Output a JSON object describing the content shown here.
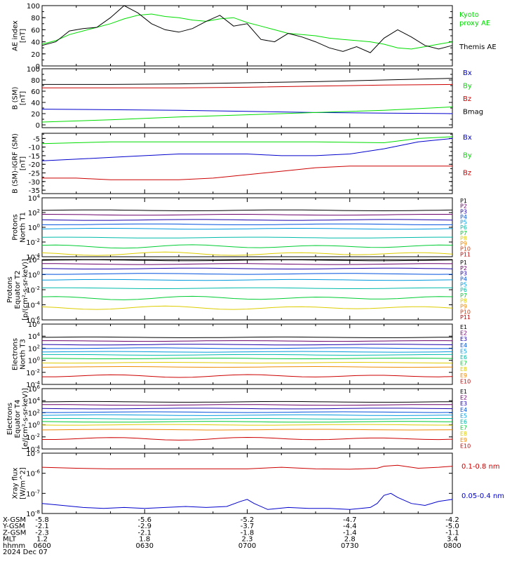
{
  "chart_data": {
    "type": "line",
    "x_time_labels": [
      "0600",
      "0630",
      "0700",
      "0730",
      "0800"
    ],
    "time_range_minutes": [
      0,
      120
    ],
    "footer": {
      "rows": [
        {
          "label": "X-GSM",
          "values": [
            "-5.8",
            "-5.6",
            "-5.2",
            "-4.7",
            "-4.2"
          ]
        },
        {
          "label": "Y-GSM",
          "values": [
            "-2.1",
            "-2.9",
            "-3.7",
            "-4.4",
            "-5.0"
          ]
        },
        {
          "label": "Z-GSM",
          "values": [
            "-2.3",
            "-2.1",
            "-1.8",
            "-1.4",
            "-1.1"
          ]
        },
        {
          "label": "MLT",
          "values": [
            "1.2",
            "1.8",
            "2.3",
            "2.8",
            "3.4"
          ]
        },
        {
          "label": "hhmm",
          "values": [
            "0600",
            "0630",
            "0700",
            "0730",
            "0800"
          ]
        }
      ],
      "date": "2024 Dec 07"
    },
    "panels": [
      {
        "id": "ae",
        "ylabel": [
          "AE index",
          "[nT]"
        ],
        "scale": "linear",
        "ylim": [
          0,
          100
        ],
        "ticks": [
          "0",
          "20",
          "40",
          "60",
          "80",
          "100"
        ],
        "series": [
          {
            "name": "Kyoto proxy AE",
            "color": "#00dd00",
            "t": [
              0,
              4,
              8,
              12,
              16,
              20,
              24,
              28,
              32,
              36,
              40,
              44,
              48,
              52,
              56,
              60,
              64,
              68,
              72,
              76,
              80,
              84,
              88,
              92,
              96,
              100,
              104,
              108,
              112,
              116,
              120
            ],
            "y": [
              36,
              42,
              52,
              58,
              64,
              70,
              78,
              84,
              86,
              82,
              80,
              76,
              74,
              78,
              80,
              72,
              66,
              60,
              54,
              52,
              50,
              46,
              44,
              42,
              40,
              36,
              30,
              28,
              32,
              36,
              40
            ]
          },
          {
            "name": "Themis AE",
            "color": "#000000",
            "t": [
              0,
              4,
              8,
              12,
              16,
              20,
              24,
              26,
              28,
              32,
              36,
              40,
              44,
              48,
              52,
              56,
              60,
              64,
              68,
              72,
              76,
              80,
              84,
              88,
              92,
              96,
              100,
              104,
              108,
              112,
              116,
              120
            ],
            "y": [
              34,
              40,
              58,
              62,
              64,
              80,
              100,
              94,
              88,
              70,
              60,
              56,
              62,
              74,
              84,
              66,
              70,
              44,
              40,
              54,
              48,
              40,
              30,
              24,
              32,
              22,
              46,
              60,
              48,
              34,
              28,
              34
            ]
          }
        ]
      },
      {
        "id": "b_sm",
        "ylabel": [
          "B (SM)",
          "[nT]"
        ],
        "scale": "linear",
        "ylim": [
          -5,
          100
        ],
        "ticks": [
          "0",
          "20",
          "40",
          "60",
          "80",
          "100"
        ],
        "series": [
          {
            "name": "Bx",
            "color": "#0000cc",
            "t": [
              0,
              20,
              40,
              60,
              80,
              100,
              120
            ],
            "y": [
              28,
              27,
              26,
              24,
              22,
              21,
              20
            ]
          },
          {
            "name": "By",
            "color": "#00dd00",
            "t": [
              0,
              20,
              40,
              60,
              80,
              100,
              120
            ],
            "y": [
              5,
              9,
              14,
              18,
              22,
              26,
              32
            ]
          },
          {
            "name": "Bz",
            "color": "#cc0000",
            "t": [
              0,
              20,
              40,
              60,
              80,
              100,
              120
            ],
            "y": [
              66,
              66,
              66,
              67,
              69,
              71,
              72
            ]
          },
          {
            "name": "Bmag",
            "color": "#000000",
            "t": [
              0,
              20,
              40,
              60,
              80,
              100,
              120
            ],
            "y": [
              72,
              72,
              73,
              75,
              77,
              80,
              83
            ]
          }
        ]
      },
      {
        "id": "b_minus_igrf",
        "ylabel": [
          "B (SM)-IGRF (SM)",
          "[nT]"
        ],
        "scale": "linear",
        "ylim": [
          -37,
          -2
        ],
        "ticks": [
          "-35",
          "-30",
          "-25",
          "-20",
          "-15",
          "-10",
          "-5"
        ],
        "series": [
          {
            "name": "Bx",
            "color": "#0000cc",
            "t": [
              0,
              10,
              20,
              30,
              40,
              50,
              60,
              70,
              80,
              90,
              100,
              110,
              120
            ],
            "y": [
              -18,
              -17,
              -16,
              -15,
              -14,
              -14,
              -14,
              -15,
              -15,
              -14,
              -11,
              -7,
              -5
            ]
          },
          {
            "name": "By",
            "color": "#00dd00",
            "t": [
              0,
              20,
              40,
              60,
              80,
              100,
              110,
              120
            ],
            "y": [
              -8,
              -7,
              -7,
              -7,
              -7,
              -7.5,
              -5,
              -4
            ]
          },
          {
            "name": "Bz",
            "color": "#cc0000",
            "t": [
              0,
              10,
              20,
              30,
              40,
              50,
              60,
              70,
              80,
              90,
              100,
              110,
              120
            ],
            "y": [
              -28,
              -28,
              -29,
              -29,
              -29,
              -28,
              -26,
              -24,
              -22,
              -21,
              -21,
              -21,
              -21
            ]
          }
        ]
      },
      {
        "id": "protons_north",
        "ylabel": [
          "Protons",
          "North T1"
        ],
        "scale": "log",
        "log_range": [
          -4,
          4
        ],
        "ticks": [
          "10^-4",
          "10^-2",
          "10^0",
          "10^2",
          "10^4"
        ],
        "channels": [
          {
            "name": "P1",
            "color": "#000000",
            "log": 2.3
          },
          {
            "name": "P2",
            "color": "#6a006a",
            "log": 1.7
          },
          {
            "name": "P3",
            "color": "#1a00aa",
            "log": 1.0
          },
          {
            "name": "P4",
            "color": "#0050dd",
            "log": 0.4
          },
          {
            "name": "P5",
            "color": "#0099dd",
            "log": -0.2
          },
          {
            "name": "P6",
            "color": "#00bbaa",
            "log": -1.4
          },
          {
            "name": "P7",
            "color": "#00cc33",
            "log": -2.6
          },
          {
            "name": "P8",
            "color": "#ddcc00",
            "log": -3.6
          },
          {
            "name": "P9",
            "color": "#ee8800",
            "log": null
          },
          {
            "name": "P10",
            "color": "#dd3300",
            "log": null
          },
          {
            "name": "P11",
            "color": "#cc0000",
            "log": null
          }
        ]
      },
      {
        "id": "protons_equator",
        "ylabel": [
          "Protons",
          "Equator T2",
          "[p/(cm²-s-sr-keV)]"
        ],
        "scale": "log",
        "log_range": [
          -6,
          2
        ],
        "ticks": [
          "10^-6",
          "10^-4",
          "10^-2",
          "10^0",
          "10^2"
        ],
        "channels": [
          {
            "name": "P1",
            "color": "#000000",
            "log": 1.9
          },
          {
            "name": "P2",
            "color": "#6a006a",
            "log": 1.4
          },
          {
            "name": "P3",
            "color": "#1a00aa",
            "log": 0.8
          },
          {
            "name": "P4",
            "color": "#0050dd",
            "log": 0.1
          },
          {
            "name": "P5",
            "color": "#0099dd",
            "log": -0.7
          },
          {
            "name": "P6",
            "color": "#00bbaa",
            "log": -1.8
          },
          {
            "name": "P7",
            "color": "#00cc33",
            "log": -3.1
          },
          {
            "name": "P8",
            "color": "#ddcc00",
            "log": -4.4
          },
          {
            "name": "P9",
            "color": "#ee8800",
            "log": null
          },
          {
            "name": "P10",
            "color": "#dd3300",
            "log": null
          },
          {
            "name": "P11",
            "color": "#cc0000",
            "log": null
          }
        ]
      },
      {
        "id": "electrons_north",
        "ylabel": [
          "Electrons",
          "North T3"
        ],
        "scale": "log",
        "log_range": [
          -4,
          6
        ],
        "ticks": [
          "10^-4",
          "10^-2",
          "10^0",
          "10^2",
          "10^4",
          "10^6"
        ],
        "channels": [
          {
            "name": "E1",
            "color": "#000000",
            "log": 3.8
          },
          {
            "name": "E2",
            "color": "#6a006a",
            "log": 3.2
          },
          {
            "name": "E3",
            "color": "#1a00aa",
            "log": 2.6
          },
          {
            "name": "E4",
            "color": "#0050dd",
            "log": 2.0
          },
          {
            "name": "E5",
            "color": "#0099dd",
            "log": 1.4
          },
          {
            "name": "E6",
            "color": "#00bbaa",
            "log": 0.9
          },
          {
            "name": "E7",
            "color": "#00cc33",
            "log": 0.3
          },
          {
            "name": "E8",
            "color": "#ddcc00",
            "log": -0.4
          },
          {
            "name": "E9",
            "color": "#ee8800",
            "log": -1.1
          },
          {
            "name": "E10",
            "color": "#cc0000",
            "log": -2.6
          }
        ]
      },
      {
        "id": "electrons_equator",
        "ylabel": [
          "Electrons",
          "Equator T4",
          "[e/(cm²-s-sr-keV)]"
        ],
        "scale": "log",
        "log_range": [
          -4,
          6
        ],
        "ticks": [
          "10^-4",
          "10^-2",
          "10^0",
          "10^2",
          "10^4",
          "10^6"
        ],
        "channels": [
          {
            "name": "E1",
            "color": "#000000",
            "log": 3.8
          },
          {
            "name": "E2",
            "color": "#6a006a",
            "log": 3.3
          },
          {
            "name": "E3",
            "color": "#1a00aa",
            "log": 2.7
          },
          {
            "name": "E4",
            "color": "#0050dd",
            "log": 2.1
          },
          {
            "name": "E5",
            "color": "#0099dd",
            "log": 1.6
          },
          {
            "name": "E6",
            "color": "#00bbaa",
            "log": 1.0
          },
          {
            "name": "E7",
            "color": "#00cc33",
            "log": 0.5
          },
          {
            "name": "E8",
            "color": "#ddcc00",
            "log": 0.0
          },
          {
            "name": "E9",
            "color": "#ee8800",
            "log": -0.8
          },
          {
            "name": "E10",
            "color": "#cc0000",
            "log": -2.3
          }
        ]
      },
      {
        "id": "xray",
        "ylabel": [
          "Xray flux",
          "[W/m^2]"
        ],
        "scale": "log",
        "log_range": [
          -8,
          -5
        ],
        "ticks": [
          "10^-8",
          "10^-7",
          "10^-6",
          "10^-5"
        ],
        "series": [
          {
            "name": "0.1-0.8 nm",
            "color": "#cc0000",
            "t": [
              0,
              10,
              20,
              30,
              40,
              50,
              60,
              70,
              80,
              90,
              98,
              100,
              104,
              110,
              116,
              120
            ],
            "log": [
              -5.7,
              -5.75,
              -5.78,
              -5.78,
              -5.78,
              -5.78,
              -5.78,
              -5.7,
              -5.78,
              -5.8,
              -5.75,
              -5.65,
              -5.6,
              -5.75,
              -5.7,
              -5.65
            ]
          },
          {
            "name": "0.05-0.4 nm",
            "color": "#0000cc",
            "t": [
              0,
              6,
              12,
              18,
              24,
              30,
              36,
              42,
              48,
              54,
              58,
              60,
              62,
              66,
              72,
              78,
              84,
              90,
              96,
              98,
              100,
              102,
              104,
              108,
              112,
              116,
              120
            ],
            "log": [
              -7.5,
              -7.6,
              -7.7,
              -7.75,
              -7.7,
              -7.75,
              -7.7,
              -7.65,
              -7.7,
              -7.65,
              -7.4,
              -7.3,
              -7.5,
              -7.8,
              -7.7,
              -7.75,
              -7.75,
              -7.8,
              -7.7,
              -7.5,
              -7.1,
              -7.0,
              -7.2,
              -7.5,
              -7.6,
              -7.4,
              -7.3
            ]
          }
        ]
      }
    ]
  }
}
